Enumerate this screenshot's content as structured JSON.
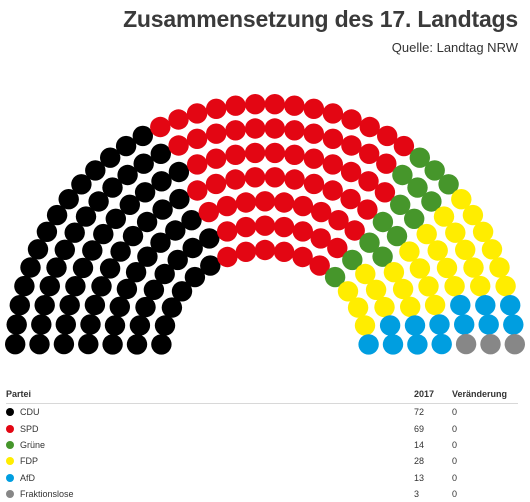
{
  "header": {
    "title": "Zusammensetzung des 17. Landtags",
    "source": "Quelle: Landtag NRW"
  },
  "table": {
    "col_party": "Partei",
    "col_year": "2017",
    "col_change": "Veränderung"
  },
  "chart_data": {
    "type": "parliament",
    "title": "Zusammensetzung des 17. Landtags",
    "total_seats": 199,
    "parties": [
      {
        "name": "CDU",
        "seats": 72,
        "change": 0,
        "color": "#000000"
      },
      {
        "name": "SPD",
        "seats": 69,
        "change": 0,
        "color": "#e30613"
      },
      {
        "name": "Grüne",
        "seats": 14,
        "change": 0,
        "color": "#46962b"
      },
      {
        "name": "FDP",
        "seats": 28,
        "change": 0,
        "color": "#ffed00"
      },
      {
        "name": "AfD",
        "seats": 13,
        "change": 0,
        "color": "#009ee0"
      },
      {
        "name": "Fraktionslose",
        "seats": 3,
        "change": 0,
        "color": "#878787"
      }
    ]
  }
}
